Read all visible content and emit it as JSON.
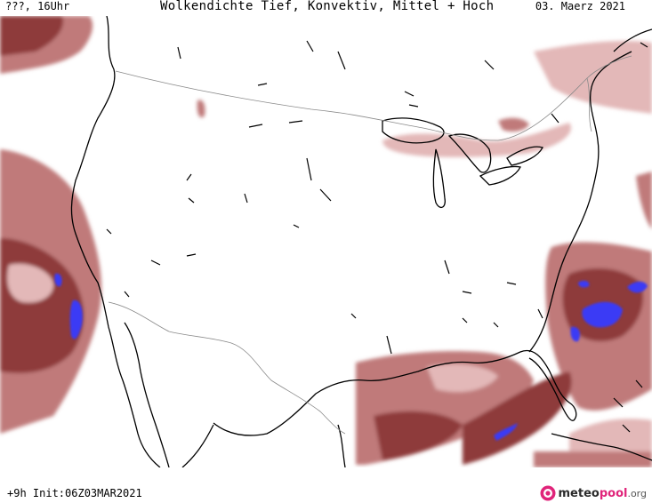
{
  "header": {
    "left_label": "???, 16Uhr",
    "title": "Wolkendichte  Tief, Konvektiv, Mittel + Hoch",
    "date": "03. Maerz 2021"
  },
  "footer": {
    "run_info": "+9h Init:06Z03MAR2021"
  },
  "brand": {
    "name_part1": "meteo",
    "name_part2": "pool",
    "name_part3": ".org",
    "logo_icon": "meteopool-logo-icon"
  },
  "legend_colors": {
    "cloud_light": "#e3b8b8",
    "cloud_medium": "#c07a7a",
    "cloud_dense": "#8e3b3b",
    "convective": "#3a3af5"
  }
}
